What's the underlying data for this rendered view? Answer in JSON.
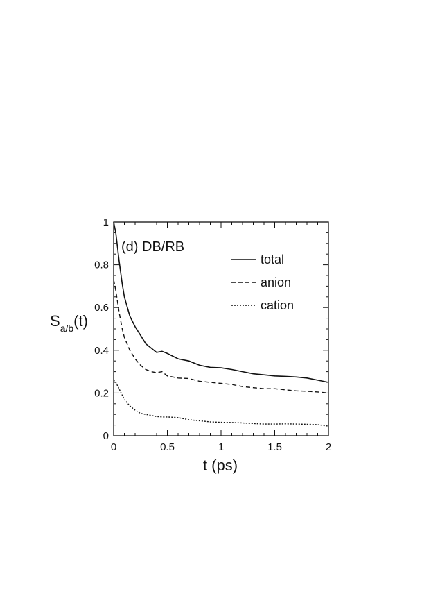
{
  "chart_data": {
    "type": "line",
    "panel_label": "(d) DB/RB",
    "ylabel": {
      "main": "S",
      "sub": "a/b",
      "suffix": "(t)"
    },
    "xlabel": "t (ps)",
    "xlim": [
      0,
      2
    ],
    "ylim": [
      0,
      1
    ],
    "x_ticks": [
      0,
      0.5,
      1,
      1.5,
      2
    ],
    "x_tick_labels": [
      "0",
      "0.5",
      "1",
      "1.5",
      "2"
    ],
    "y_ticks": [
      0,
      0.2,
      0.4,
      0.6,
      0.8,
      1
    ],
    "y_tick_labels": [
      "0",
      "0.2",
      "0.4",
      "0.6",
      "0.8",
      "1"
    ],
    "legend_position": "upper-right",
    "series": [
      {
        "name": "total",
        "style": "solid",
        "x": [
          0,
          0.02,
          0.05,
          0.08,
          0.1,
          0.15,
          0.2,
          0.25,
          0.3,
          0.35,
          0.4,
          0.45,
          0.5,
          0.6,
          0.7,
          0.8,
          0.9,
          1.0,
          1.1,
          1.2,
          1.3,
          1.4,
          1.5,
          1.6,
          1.7,
          1.8,
          1.9,
          2.0
        ],
        "y": [
          1.0,
          0.95,
          0.82,
          0.71,
          0.65,
          0.56,
          0.51,
          0.47,
          0.43,
          0.41,
          0.39,
          0.395,
          0.385,
          0.36,
          0.35,
          0.33,
          0.32,
          0.318,
          0.31,
          0.3,
          0.29,
          0.285,
          0.28,
          0.278,
          0.275,
          0.27,
          0.26,
          0.25
        ]
      },
      {
        "name": "anion",
        "style": "dashed",
        "x": [
          0,
          0.02,
          0.05,
          0.08,
          0.1,
          0.15,
          0.2,
          0.25,
          0.3,
          0.35,
          0.4,
          0.45,
          0.5,
          0.6,
          0.7,
          0.8,
          0.9,
          1.0,
          1.1,
          1.2,
          1.3,
          1.4,
          1.5,
          1.6,
          1.7,
          1.8,
          1.9,
          2.0
        ],
        "y": [
          0.73,
          0.68,
          0.58,
          0.5,
          0.46,
          0.4,
          0.36,
          0.33,
          0.31,
          0.3,
          0.295,
          0.3,
          0.28,
          0.27,
          0.268,
          0.255,
          0.25,
          0.245,
          0.24,
          0.23,
          0.225,
          0.22,
          0.22,
          0.215,
          0.21,
          0.208,
          0.205,
          0.2
        ]
      },
      {
        "name": "cation",
        "style": "dotted",
        "x": [
          0,
          0.02,
          0.05,
          0.08,
          0.1,
          0.15,
          0.2,
          0.25,
          0.3,
          0.35,
          0.4,
          0.45,
          0.5,
          0.6,
          0.7,
          0.8,
          0.9,
          1.0,
          1.1,
          1.2,
          1.3,
          1.4,
          1.5,
          1.6,
          1.7,
          1.8,
          1.9,
          2.0
        ],
        "y": [
          0.26,
          0.25,
          0.22,
          0.19,
          0.17,
          0.14,
          0.12,
          0.105,
          0.1,
          0.095,
          0.09,
          0.088,
          0.088,
          0.085,
          0.075,
          0.07,
          0.065,
          0.063,
          0.062,
          0.06,
          0.057,
          0.055,
          0.055,
          0.056,
          0.055,
          0.054,
          0.052,
          0.045
        ]
      }
    ]
  }
}
